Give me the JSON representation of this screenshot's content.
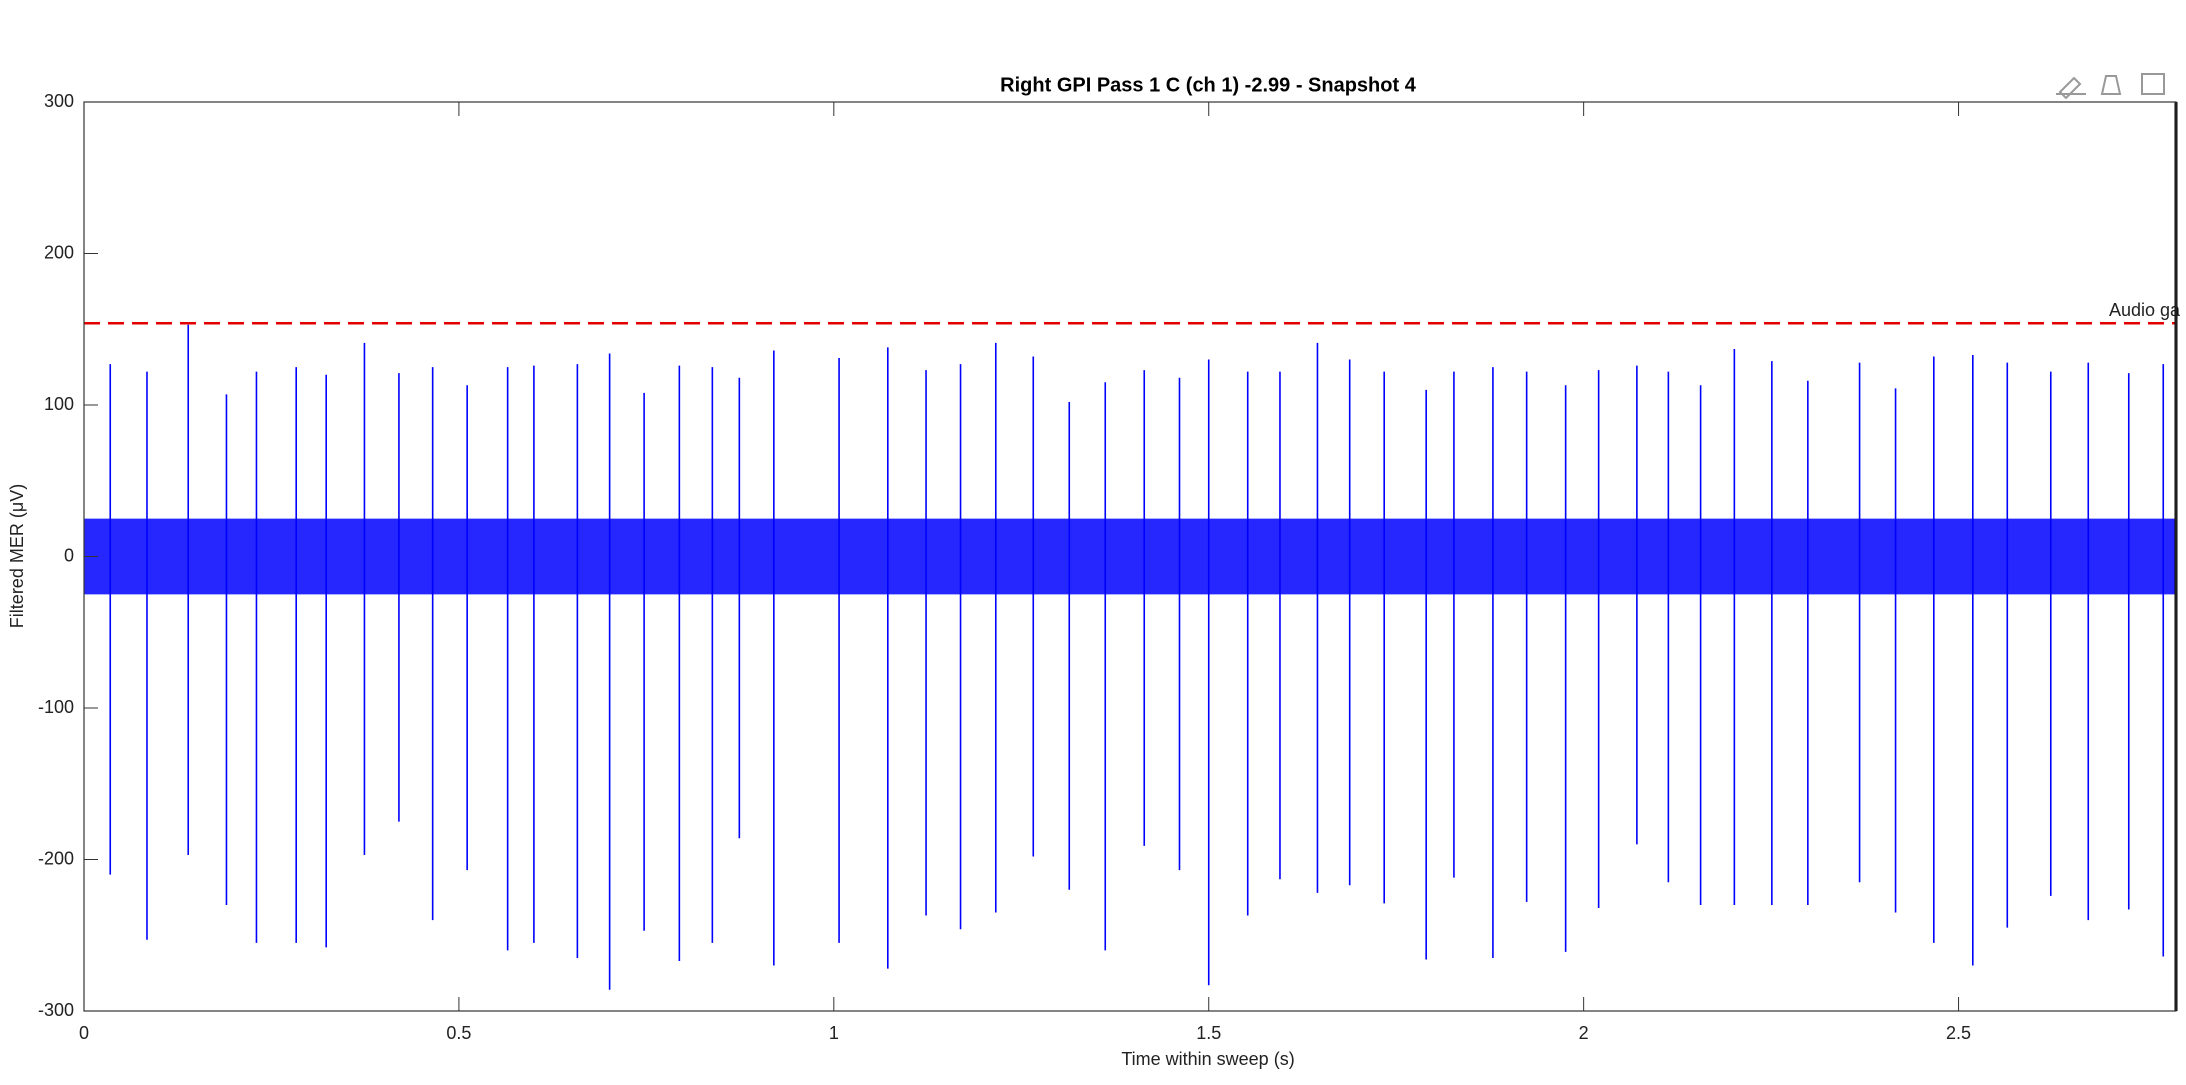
{
  "chart_data": {
    "type": "line",
    "title": "Right GPI Pass 1 C (ch 1) -2.99 - Snapshot 4",
    "xlabel": "Time within sweep (s)",
    "ylabel": "Filtered MER (μV)",
    "xlim": [
      0,
      2.79
    ],
    "ylim": [
      -300,
      300
    ],
    "xticks": [
      0,
      0.5,
      1,
      1.5,
      2,
      2.5
    ],
    "yticks": [
      -300,
      -200,
      -100,
      0,
      100,
      200,
      300
    ],
    "color": "#0000ff",
    "noise_range": [
      -25,
      25
    ],
    "spikes": {
      "x": [
        0.035,
        0.084,
        0.139,
        0.19,
        0.23,
        0.283,
        0.323,
        0.374,
        0.42,
        0.465,
        0.511,
        0.565,
        0.6,
        0.658,
        0.701,
        0.747,
        0.794,
        0.838,
        0.874,
        0.92,
        1.007,
        1.072,
        1.123,
        1.169,
        1.216,
        1.266,
        1.314,
        1.362,
        1.414,
        1.461,
        1.5,
        1.552,
        1.595,
        1.645,
        1.688,
        1.734,
        1.79,
        1.827,
        1.879,
        1.924,
        1.976,
        2.02,
        2.071,
        2.113,
        2.156,
        2.201,
        2.251,
        2.299,
        2.368,
        2.416,
        2.467,
        2.519,
        2.565,
        2.623,
        2.673,
        2.727,
        2.773
      ],
      "high": [
        127,
        122,
        153,
        107,
        122,
        125,
        120,
        141,
        121,
        125,
        113,
        125,
        126,
        127,
        134,
        108,
        126,
        125,
        118,
        136,
        131,
        138,
        123,
        127,
        141,
        132,
        102,
        115,
        123,
        118,
        130,
        122,
        122,
        141,
        130,
        122,
        110,
        122,
        125,
        122,
        113,
        123,
        126,
        122,
        113,
        137,
        129,
        116,
        128,
        111,
        132,
        133,
        128,
        122,
        128,
        121,
        127
      ],
      "low": [
        -210,
        -253,
        -197,
        -230,
        -255,
        -255,
        -258,
        -197,
        -175,
        -240,
        -207,
        -260,
        -255,
        -265,
        -286,
        -247,
        -267,
        -255,
        -186,
        -270,
        -255,
        -272,
        -237,
        -246,
        -235,
        -198,
        -220,
        -260,
        -191,
        -207,
        -283,
        -237,
        -213,
        -222,
        -217,
        -229,
        -266,
        -212,
        -265,
        -228,
        -261,
        -232,
        -190,
        -215,
        -230,
        -230,
        -230,
        -230,
        -215,
        -235,
        -255,
        -270,
        -245,
        -224,
        -240,
        -233,
        -264
      ]
    },
    "threshold": {
      "value": 154,
      "label": "Audio ga",
      "color": "#e00000"
    },
    "cursor_x": 2.79
  }
}
